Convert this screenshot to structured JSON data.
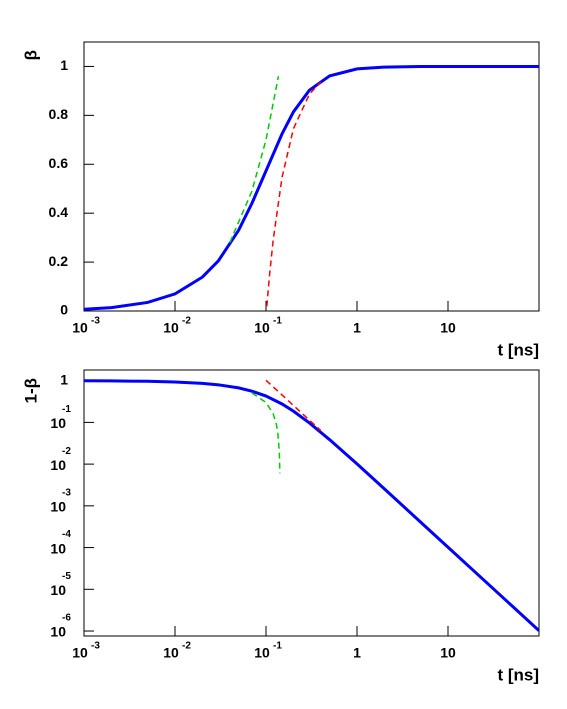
{
  "chart_data": [
    {
      "type": "line",
      "xscale": "log",
      "yscale": "linear",
      "x_label": "t [ns]",
      "y_label": "β",
      "xlim": [
        0.001,
        100
      ],
      "ylim": [
        0,
        1.1
      ],
      "xticks": [
        {
          "value": 0.001,
          "label": "10",
          "exponent": "-3"
        },
        {
          "value": 0.01,
          "label": "10",
          "exponent": "-2"
        },
        {
          "value": 0.1,
          "label": "10",
          "exponent": "-1"
        },
        1,
        10
      ],
      "yticks": [
        0,
        0.2,
        0.4,
        0.6,
        0.8,
        1
      ],
      "series": [
        {
          "color": "#0000ff",
          "dashed": false,
          "x": [
            0.001,
            0.002,
            0.005,
            0.01,
            0.02,
            0.03,
            0.05,
            0.07,
            0.1,
            0.15,
            0.2,
            0.3,
            0.5,
            1,
            2,
            5,
            10,
            20,
            50,
            100
          ],
          "values": [
            0.007,
            0.014,
            0.035,
            0.0698,
            0.1386,
            0.2055,
            0.33,
            0.44,
            0.573,
            0.724,
            0.814,
            0.9029,
            0.9615,
            0.9899,
            0.99745,
            0.99959,
            0.9999,
            0.99997,
            1,
            1
          ]
        },
        {
          "color": "#00cc00",
          "dashed": true,
          "x": [
            0.04,
            0.07,
            0.1,
            0.137
          ],
          "values": [
            0.28,
            0.49,
            0.7,
            0.96
          ]
        },
        {
          "color": "#ff0000",
          "dashed": true,
          "x": [
            0.102,
            0.11,
            0.12,
            0.15,
            0.2,
            0.3,
            0.4
          ],
          "values": [
            0.0192,
            0.157,
            0.291,
            0.546,
            0.745,
            0.887,
            0.936
          ]
        }
      ]
    },
    {
      "type": "line",
      "xscale": "log",
      "yscale": "log",
      "x_label": "t [ns]",
      "y_label": "1-β",
      "xlim": [
        0.001,
        100
      ],
      "ylim": [
        7.6e-07,
        1.8
      ],
      "xticks": [
        {
          "value": 0.001,
          "label": "10",
          "exponent": "-3"
        },
        {
          "value": 0.01,
          "label": "10",
          "exponent": "-2"
        },
        {
          "value": 0.1,
          "label": "10",
          "exponent": "-1"
        },
        1,
        10
      ],
      "yticks": [
        1,
        {
          "value": 0.1,
          "label": "10",
          "exponent": "-1"
        },
        {
          "value": 0.01,
          "label": "10",
          "exponent": "-2"
        },
        {
          "value": 0.001,
          "label": "10",
          "exponent": "-3"
        },
        {
          "value": 0.0001,
          "label": "10",
          "exponent": "-4"
        },
        {
          "value": 1e-05,
          "label": "10",
          "exponent": "-5"
        },
        {
          "value": 1e-06,
          "label": "10",
          "exponent": "-6"
        }
      ],
      "series": [
        {
          "color": "#0000ff",
          "dashed": false,
          "x": [
            0.001,
            0.002,
            0.005,
            0.01,
            0.02,
            0.03,
            0.05,
            0.07,
            0.1,
            0.15,
            0.2,
            0.3,
            0.5,
            1,
            2,
            5,
            10,
            20,
            50,
            100
          ],
          "values": [
            0.993,
            0.986,
            0.965,
            0.93,
            0.861,
            0.7945,
            0.67,
            0.56,
            0.427,
            0.276,
            0.186,
            0.0971,
            0.0385,
            0.0101,
            0.00255,
            0.000408,
            0.000102,
            2.55e-05,
            4.08e-06,
            1.02e-06
          ]
        },
        {
          "color": "#00cc00",
          "dashed": true,
          "x": [
            0.07,
            0.1,
            0.12,
            0.13,
            0.135,
            0.14,
            0.142
          ],
          "values": [
            0.51,
            0.3,
            0.16,
            0.09,
            0.055,
            0.02,
            0.006
          ]
        },
        {
          "color": "#ff0000",
          "dashed": true,
          "x": [
            0.1,
            0.15,
            0.2,
            0.3,
            0.4
          ],
          "values": [
            1.02,
            0.454,
            0.255,
            0.113,
            0.0638
          ]
        }
      ]
    }
  ]
}
